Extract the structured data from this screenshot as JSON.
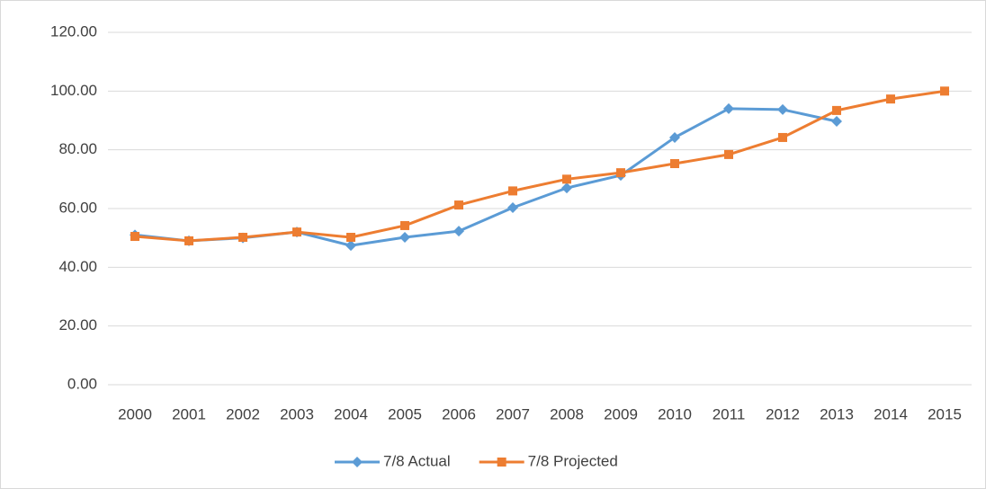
{
  "chart_data": {
    "type": "line",
    "categories": [
      "2000",
      "2001",
      "2002",
      "2003",
      "2004",
      "2005",
      "2006",
      "2007",
      "2008",
      "2009",
      "2010",
      "2011",
      "2012",
      "2013",
      "2014",
      "2015"
    ],
    "series": [
      {
        "name": "7/8 Actual",
        "color": "#5b9bd5",
        "marker": "diamond",
        "values": [
          51,
          49,
          50,
          52,
          47.4,
          50.2,
          52.3,
          60.3,
          67,
          71.3,
          84.2,
          94,
          93.7,
          89.7,
          null,
          null
        ]
      },
      {
        "name": "7/8 Projected",
        "color": "#ed7d31",
        "marker": "square",
        "values": [
          50.5,
          49,
          50.2,
          52,
          50.2,
          54.2,
          61.2,
          66,
          70,
          72.2,
          75.3,
          78.4,
          84.2,
          93.4,
          97.3,
          100
        ]
      }
    ],
    "ylim": [
      0,
      120
    ],
    "yticks": [
      {
        "value": 0,
        "label": "0.00"
      },
      {
        "value": 20,
        "label": "20.00"
      },
      {
        "value": 40,
        "label": "40.00"
      },
      {
        "value": 60,
        "label": "60.00"
      },
      {
        "value": 80,
        "label": "80.00"
      },
      {
        "value": 100,
        "label": "100.00"
      },
      {
        "value": 120,
        "label": "120.00"
      }
    ],
    "grid": true,
    "legend": "bottom"
  }
}
